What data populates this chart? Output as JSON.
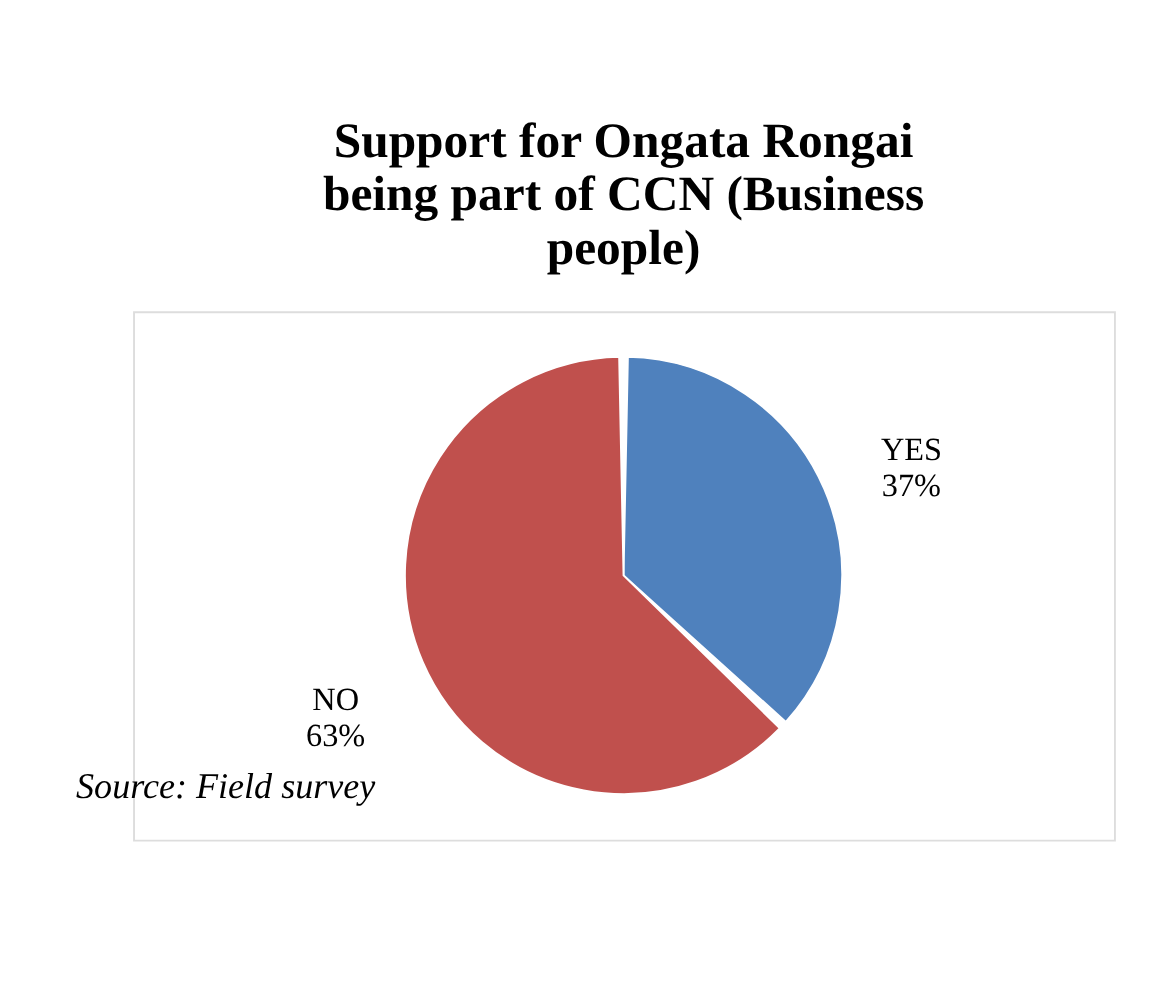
{
  "chart_data": {
    "type": "pie",
    "title": "Support for Ongata Rongai being part of CCN (Business people)",
    "categories": [
      "YES",
      "NO"
    ],
    "values": [
      37,
      63
    ],
    "value_labels": [
      "37%",
      "63%"
    ],
    "colors": [
      "#4f81bd",
      "#c0504d"
    ],
    "annotations": [
      "Source: Field survey"
    ]
  }
}
